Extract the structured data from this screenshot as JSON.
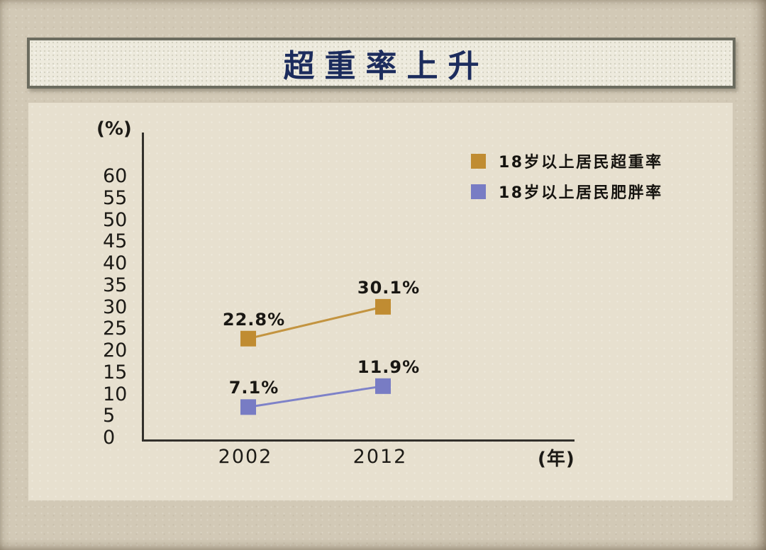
{
  "title": "超重率上升",
  "chart_data": {
    "type": "line",
    "title": "超重率上升",
    "categories": [
      "2002",
      "2012"
    ],
    "series": [
      {
        "name": "18岁以上居民超重率",
        "color": "#c08c32",
        "line_color": "#c39440",
        "values": [
          22.8,
          30.1
        ],
        "point_labels": [
          "22.8%",
          "30.1%"
        ]
      },
      {
        "name": "18岁以上居民肥胖率",
        "color": "#787cc4",
        "line_color": "#7e82c8",
        "values": [
          7.1,
          11.9
        ],
        "point_labels": [
          "7.1%",
          "11.9%"
        ]
      }
    ],
    "xlabel": "(年)",
    "ylabel": "(%)",
    "yticks": [
      0,
      5,
      10,
      15,
      20,
      25,
      30,
      35,
      40,
      45,
      50,
      55,
      60
    ],
    "ylim": [
      0,
      65
    ],
    "grid": false,
    "legend_position": "top-right",
    "marker": "square"
  },
  "colors": {
    "page_background": "#d2c9b6",
    "panel_background": "#e7e0cf",
    "banner_background": "#edeadd",
    "banner_border": "#6c6c5f",
    "title_color": "#1c2c5d",
    "axis_color": "#32302b",
    "text_color": "#1c1a16"
  }
}
